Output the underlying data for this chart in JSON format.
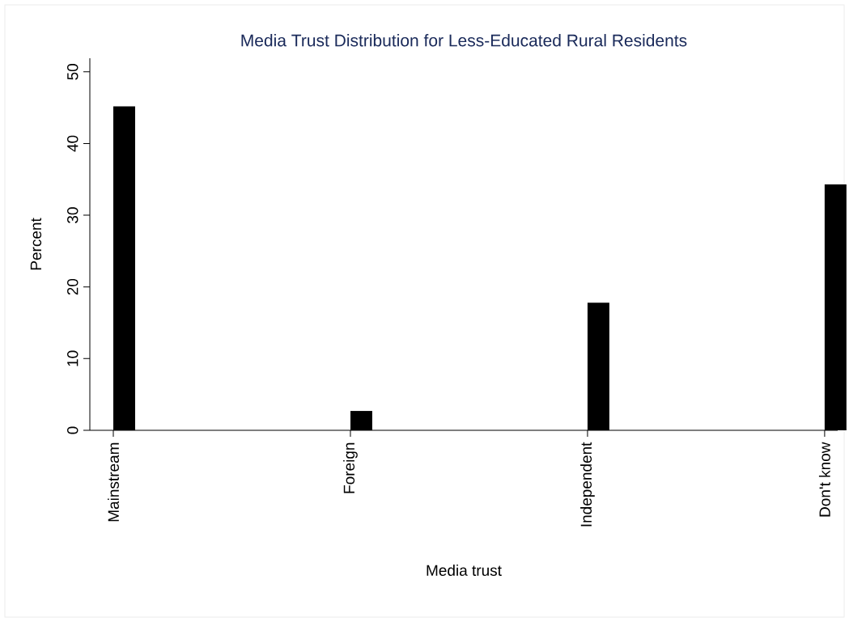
{
  "chart_data": {
    "type": "bar",
    "title": "Media Trust Distribution for Less-Educated Rural Residents",
    "xlabel": "Media trust",
    "ylabel": "Percent",
    "categories": [
      "Mainstream",
      "Foreign",
      "Independent",
      "Don't know"
    ],
    "values": [
      45.2,
      2.7,
      17.8,
      34.3
    ],
    "color": "#000000",
    "ylim": [
      0,
      51.9
    ],
    "yticks": [
      0,
      10,
      20,
      30,
      40,
      50
    ]
  }
}
